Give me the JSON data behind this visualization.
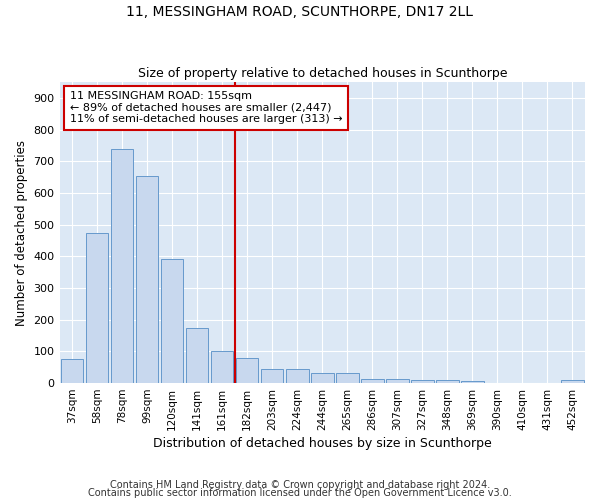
{
  "title": "11, MESSINGHAM ROAD, SCUNTHORPE, DN17 2LL",
  "subtitle": "Size of property relative to detached houses in Scunthorpe",
  "xlabel": "Distribution of detached houses by size in Scunthorpe",
  "ylabel": "Number of detached properties",
  "categories": [
    "37sqm",
    "58sqm",
    "78sqm",
    "99sqm",
    "120sqm",
    "141sqm",
    "161sqm",
    "182sqm",
    "203sqm",
    "224sqm",
    "244sqm",
    "265sqm",
    "286sqm",
    "307sqm",
    "327sqm",
    "348sqm",
    "369sqm",
    "390sqm",
    "410sqm",
    "431sqm",
    "452sqm"
  ],
  "values": [
    75,
    475,
    740,
    655,
    390,
    175,
    100,
    78,
    45,
    45,
    32,
    32,
    12,
    12,
    10,
    10,
    8,
    0,
    0,
    0,
    10
  ],
  "bar_color": "#c8d8ee",
  "bar_edge_color": "#6699cc",
  "background_color": "#dce8f5",
  "red_line_color": "#cc0000",
  "annotation_text": "11 MESSINGHAM ROAD: 155sqm\n← 89% of detached houses are smaller (2,447)\n11% of semi-detached houses are larger (313) →",
  "annotation_box_color": "#ffffff",
  "annotation_box_edge": "#cc0000",
  "ylim": [
    0,
    950
  ],
  "yticks": [
    0,
    100,
    200,
    300,
    400,
    500,
    600,
    700,
    800,
    900
  ],
  "footer1": "Contains HM Land Registry data © Crown copyright and database right 2024.",
  "footer2": "Contains public sector information licensed under the Open Government Licence v3.0."
}
